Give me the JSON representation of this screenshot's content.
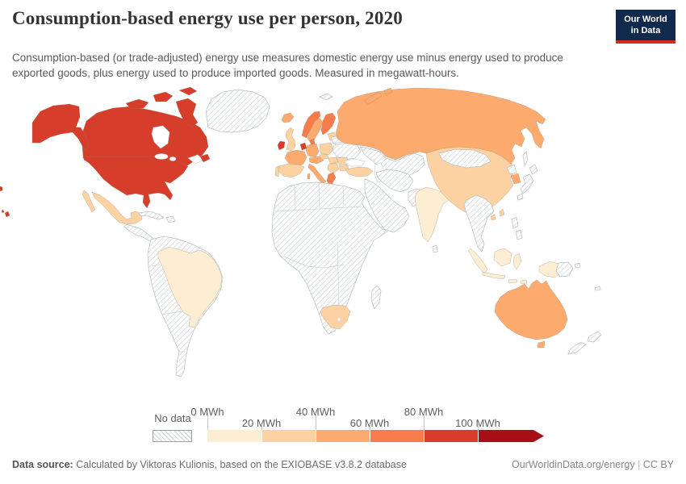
{
  "header": {
    "title": "Consumption-based energy use per person, 2020",
    "subtitle": "Consumption-based (or trade-adjusted) energy use measures domestic energy use minus energy used to produce exported goods, plus energy used to produce imported goods. Measured in megawatt-hours.",
    "logo": {
      "line1": "Our World",
      "line2": "in Data",
      "bg_color": "#11294b",
      "stripe_color": "#d42a20"
    }
  },
  "legend": {
    "no_data_label": "No data",
    "tick_labels": [
      "0 MWh",
      "20 MWh",
      "40 MWh",
      "60 MWh",
      "80 MWh",
      "100 MWh"
    ],
    "bins": [
      {
        "label": "0-20 MWh",
        "color": "#fdedd3"
      },
      {
        "label": "20-40 MWh",
        "color": "#fdd2a2"
      },
      {
        "label": "40-60 MWh",
        "color": "#fcaa6e"
      },
      {
        "label": "60-80 MWh",
        "color": "#f67c4c"
      },
      {
        "label": "80-100 MWh",
        "color": "#d63e2b"
      },
      {
        "label": "100+ MWh",
        "color": "#a50f15"
      }
    ]
  },
  "footer": {
    "source_label": "Data source:",
    "source_text": " Calculated by Viktoras Kulionis, based on the EXIOBASE v3.8.2 database",
    "link": "OurWorldinData.org/energy",
    "separator": " | ",
    "license": "CC BY"
  },
  "chart_data": {
    "type": "choropleth_map",
    "title": "Consumption-based energy use per person, 2020",
    "unit": "MWh",
    "bin_edges": [
      0,
      20,
      40,
      60,
      80,
      100
    ],
    "legend_position": "bottom",
    "no_data_style": "diagonal-hatch",
    "region_bins": {
      "united-states": "80-100 MWh",
      "hawaii": "80-100 MWh",
      "canada": "80-100 MWh",
      "greenland": "no-data",
      "mexico": "20-40 MWh",
      "central-america": "no-data",
      "caribbean": "no-data",
      "brazil": "0-20 MWh",
      "south-america-other": "no-data",
      "iceland": "40-60 MWh",
      "ireland": "80-100 MWh",
      "united-kingdom": "20-40 MWh",
      "norway": "60-80 MWh",
      "sweden": "40-60 MWh",
      "finland": "60-80 MWh",
      "denmark": "60-80 MWh",
      "baltics": "20-40 MWh",
      "benelux": "80-100 MWh",
      "germany": "40-60 MWh",
      "poland": "20-40 MWh",
      "france": "40-60 MWh",
      "spain": "20-40 MWh",
      "portugal": "20-40 MWh",
      "alpine": "40-60 MWh",
      "czechia": "20-40 MWh",
      "italy": "40-60 MWh",
      "hungary": "20-40 MWh",
      "balkans": "20-40 MWh",
      "romania": "20-40 MWh",
      "bulgaria": "20-40 MWh",
      "greece": "60-80 MWh",
      "ukraine": "no-data",
      "belarus": "no-data",
      "russia": "40-60 MWh",
      "svalbard": "no-data",
      "kazakhstan-central-asia": "no-data",
      "turkey": "20-40 MWh",
      "iran": "no-data",
      "arabian-peninsula": "no-data",
      "afghanistan-pakistan": "no-data",
      "africa-other": "no-data",
      "madagascar": "no-data",
      "south-africa": "20-40 MWh",
      "india": "0-20 MWh",
      "sri-lanka": "no-data",
      "china": "20-40 MWh",
      "hainan": "20-40 MWh",
      "mongolia": "no-data",
      "north-korea": "no-data",
      "south-korea": "40-60 MWh",
      "japan": "no-data",
      "sakhalin": "no-data",
      "taiwan": "20-40 MWh",
      "southeast-asia": "no-data",
      "philippines": "no-data",
      "indonesia": "0-20 MWh",
      "papua-new-guinea": "no-data",
      "australia": "40-60 MWh",
      "new-zealand": "no-data",
      "pacific-islands": "no-data"
    }
  }
}
